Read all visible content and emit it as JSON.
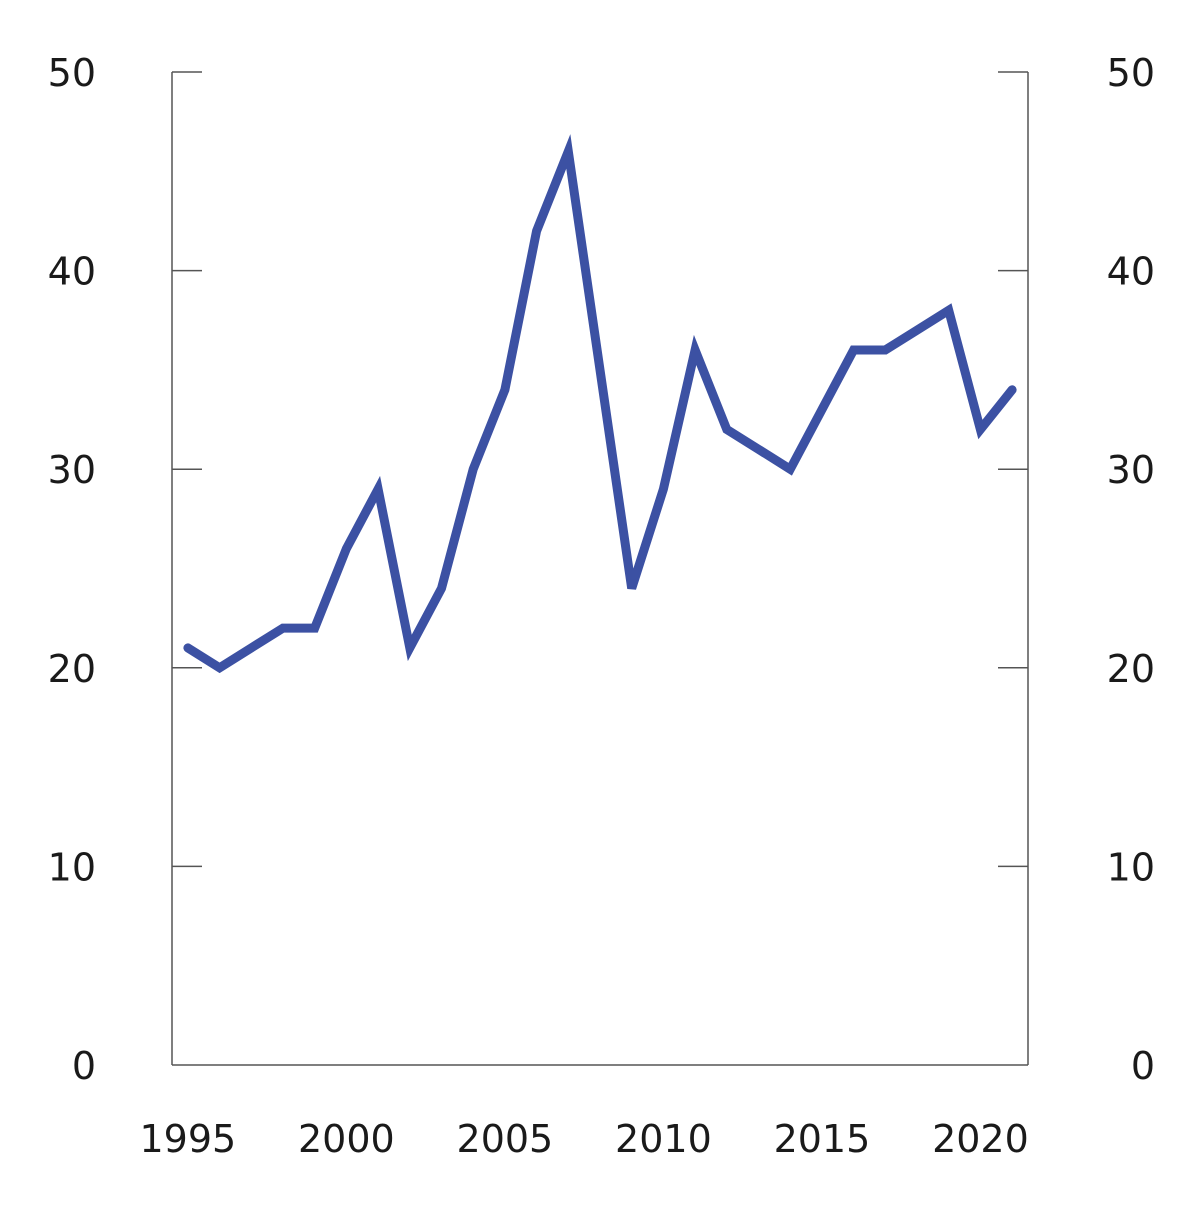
{
  "chart_data": {
    "type": "line",
    "title": "",
    "xlabel": "",
    "ylabel": "",
    "x": [
      1995,
      1996,
      1997,
      1998,
      1999,
      2000,
      2001,
      2002,
      2003,
      2004,
      2005,
      2006,
      2007,
      2008,
      2009,
      2010,
      2011,
      2012,
      2013,
      2014,
      2015,
      2016,
      2017,
      2018,
      2019,
      2020,
      2021
    ],
    "series": [
      {
        "values": [
          21,
          20,
          21,
          22,
          22,
          26,
          29,
          21,
          24,
          30,
          34,
          42,
          46,
          35,
          24,
          29,
          36,
          32,
          31,
          30,
          33,
          36,
          36,
          37,
          38,
          32,
          34
        ],
        "color": "#3c51a3"
      }
    ],
    "xlim": [
      1994.5,
      2021.5
    ],
    "ylim": [
      0,
      50
    ],
    "x_ticks": [
      "1995",
      "2000",
      "2005",
      "2010",
      "2015",
      "2020"
    ],
    "y_ticks_left": [
      "0",
      "10",
      "20",
      "30",
      "40",
      "50"
    ],
    "y_ticks_right": [
      "0",
      "10",
      "20",
      "30",
      "40",
      "50"
    ],
    "grid": false,
    "legend": "none"
  }
}
